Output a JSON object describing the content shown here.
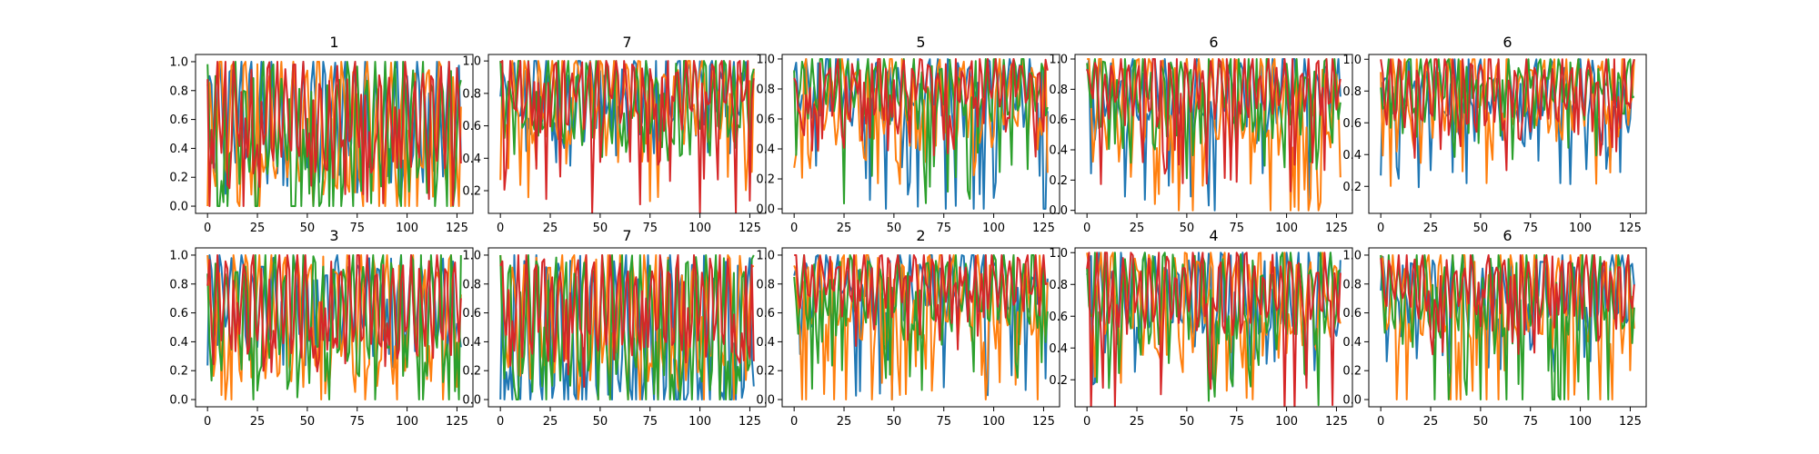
{
  "figure": {
    "background": "#ffffff",
    "series_colors": [
      "#1f77b4",
      "#ff7f0e",
      "#2ca02c",
      "#d62728"
    ]
  },
  "chart_data": [
    {
      "type": "line",
      "title": "1",
      "x_range": [
        0,
        127
      ],
      "xlim": [
        -6,
        133
      ],
      "ylim": [
        -0.05,
        1.05
      ],
      "xticks": [
        0,
        25,
        50,
        75,
        100,
        125
      ],
      "yticks": [
        0.0,
        0.2,
        0.4,
        0.6,
        0.8,
        1.0
      ],
      "series": [
        {
          "color": "#1f77b4",
          "center": 0.62,
          "amp": 0.38,
          "period": 5.2,
          "dip": 0.6,
          "phase": 0.3,
          "seed": 11
        },
        {
          "color": "#ff7f0e",
          "center": 0.58,
          "amp": 0.42,
          "period": 6.1,
          "dip": 0.9,
          "phase": 1.1,
          "seed": 12
        },
        {
          "color": "#2ca02c",
          "center": 0.6,
          "amp": 0.4,
          "period": 4.7,
          "dip": 1.0,
          "phase": 2.0,
          "seed": 13
        },
        {
          "color": "#d62728",
          "center": 0.65,
          "amp": 0.35,
          "period": 4.3,
          "dip": 0.7,
          "phase": 0.8,
          "seed": 14
        }
      ]
    },
    {
      "type": "line",
      "title": "7",
      "x_range": [
        0,
        127
      ],
      "xlim": [
        -6,
        133
      ],
      "ylim": [
        0.06,
        1.04
      ],
      "xticks": [
        0,
        25,
        50,
        75,
        100,
        125
      ],
      "yticks": [
        0.2,
        0.4,
        0.6,
        0.8,
        1.0
      ],
      "series": [
        {
          "color": "#1f77b4",
          "center": 0.8,
          "amp": 0.2,
          "period": 5.5,
          "dip": 0.5,
          "phase": 0.2,
          "seed": 21
        },
        {
          "color": "#ff7f0e",
          "center": 0.78,
          "amp": 0.22,
          "period": 6.3,
          "dip": 0.7,
          "phase": 1.4,
          "seed": 22
        },
        {
          "color": "#2ca02c",
          "center": 0.76,
          "amp": 0.24,
          "period": 4.9,
          "dip": 0.4,
          "phase": 2.2,
          "seed": 23
        },
        {
          "color": "#d62728",
          "center": 0.82,
          "amp": 0.18,
          "period": 4.4,
          "dip": 0.8,
          "phase": 0.6,
          "seed": 24
        }
      ]
    },
    {
      "type": "line",
      "title": "5",
      "x_range": [
        0,
        127
      ],
      "xlim": [
        -6,
        133
      ],
      "ylim": [
        -0.03,
        1.03
      ],
      "xticks": [
        0,
        25,
        50,
        75,
        100,
        125
      ],
      "yticks": [
        0.0,
        0.2,
        0.4,
        0.6,
        0.8,
        1.0
      ],
      "series": [
        {
          "color": "#1f77b4",
          "center": 0.8,
          "amp": 0.2,
          "period": 5.1,
          "dip": 1.0,
          "phase": 0.4,
          "seed": 31
        },
        {
          "color": "#ff7f0e",
          "center": 0.76,
          "amp": 0.24,
          "period": 6.0,
          "dip": 0.6,
          "phase": 1.3,
          "seed": 32
        },
        {
          "color": "#2ca02c",
          "center": 0.82,
          "amp": 0.18,
          "period": 4.6,
          "dip": 0.8,
          "phase": 2.1,
          "seed": 33
        },
        {
          "color": "#d62728",
          "center": 0.84,
          "amp": 0.16,
          "period": 4.2,
          "dip": 0.5,
          "phase": 0.9,
          "seed": 34
        }
      ]
    },
    {
      "type": "line",
      "title": "6",
      "x_range": [
        0,
        127
      ],
      "xlim": [
        -6,
        133
      ],
      "ylim": [
        -0.02,
        1.03
      ],
      "xticks": [
        0,
        25,
        50,
        75,
        100,
        125
      ],
      "yticks": [
        0.0,
        0.2,
        0.4,
        0.6,
        0.8,
        1.0
      ],
      "series": [
        {
          "color": "#1f77b4",
          "center": 0.78,
          "amp": 0.22,
          "period": 5.4,
          "dip": 0.9,
          "phase": 0.1,
          "seed": 41
        },
        {
          "color": "#ff7f0e",
          "center": 0.7,
          "amp": 0.3,
          "period": 6.2,
          "dip": 0.9,
          "phase": 1.2,
          "seed": 42
        },
        {
          "color": "#2ca02c",
          "center": 0.8,
          "amp": 0.2,
          "period": 4.8,
          "dip": 0.6,
          "phase": 2.4,
          "seed": 43
        },
        {
          "color": "#d62728",
          "center": 0.82,
          "amp": 0.18,
          "period": 4.1,
          "dip": 0.7,
          "phase": 0.7,
          "seed": 44
        }
      ]
    },
    {
      "type": "line",
      "title": "6",
      "x_range": [
        0,
        127
      ],
      "xlim": [
        -6,
        133
      ],
      "ylim": [
        0.03,
        1.03
      ],
      "xticks": [
        0,
        25,
        50,
        75,
        100,
        125
      ],
      "yticks": [
        0.2,
        0.4,
        0.6,
        0.8,
        1.0
      ],
      "series": [
        {
          "color": "#1f77b4",
          "center": 0.78,
          "amp": 0.18,
          "period": 7.0,
          "dip": 0.6,
          "phase": 0.5,
          "seed": 51
        },
        {
          "color": "#ff7f0e",
          "center": 0.8,
          "amp": 0.2,
          "period": 5.8,
          "dip": 0.6,
          "phase": 1.6,
          "seed": 52
        },
        {
          "color": "#2ca02c",
          "center": 0.86,
          "amp": 0.14,
          "period": 5.0,
          "dip": 0.5,
          "phase": 2.5,
          "seed": 53
        },
        {
          "color": "#d62728",
          "center": 0.8,
          "amp": 0.2,
          "period": 4.5,
          "dip": 0.5,
          "phase": 0.9,
          "seed": 54
        }
      ]
    },
    {
      "type": "line",
      "title": "3",
      "x_range": [
        0,
        127
      ],
      "xlim": [
        -6,
        133
      ],
      "ylim": [
        -0.05,
        1.05
      ],
      "xticks": [
        0,
        25,
        50,
        75,
        100,
        125
      ],
      "yticks": [
        0.0,
        0.2,
        0.4,
        0.6,
        0.8,
        1.0
      ],
      "series": [
        {
          "color": "#1f77b4",
          "center": 0.7,
          "amp": 0.3,
          "period": 5.3,
          "dip": 0.5,
          "phase": 0.2,
          "seed": 61
        },
        {
          "color": "#ff7f0e",
          "center": 0.6,
          "amp": 0.4,
          "period": 6.4,
          "dip": 0.9,
          "phase": 1.5,
          "seed": 62
        },
        {
          "color": "#2ca02c",
          "center": 0.62,
          "amp": 0.38,
          "period": 4.9,
          "dip": 0.9,
          "phase": 2.3,
          "seed": 63
        },
        {
          "color": "#d62728",
          "center": 0.68,
          "amp": 0.32,
          "period": 4.4,
          "dip": 0.5,
          "phase": 0.6,
          "seed": 64
        }
      ]
    },
    {
      "type": "line",
      "title": "7",
      "x_range": [
        0,
        127
      ],
      "xlim": [
        -6,
        133
      ],
      "ylim": [
        -0.05,
        1.05
      ],
      "xticks": [
        0,
        25,
        50,
        75,
        100,
        125
      ],
      "yticks": [
        0.0,
        0.2,
        0.4,
        0.6,
        0.8,
        1.0
      ],
      "series": [
        {
          "color": "#1f77b4",
          "center": 0.5,
          "amp": 0.5,
          "period": 5.6,
          "dip": 1.0,
          "phase": 0.3,
          "seed": 71
        },
        {
          "color": "#ff7f0e",
          "center": 0.6,
          "amp": 0.4,
          "period": 6.0,
          "dip": 0.8,
          "phase": 1.2,
          "seed": 72
        },
        {
          "color": "#2ca02c",
          "center": 0.55,
          "amp": 0.45,
          "period": 4.7,
          "dip": 1.0,
          "phase": 2.0,
          "seed": 73
        },
        {
          "color": "#d62728",
          "center": 0.68,
          "amp": 0.32,
          "period": 4.2,
          "dip": 0.6,
          "phase": 0.8,
          "seed": 74
        }
      ]
    },
    {
      "type": "line",
      "title": "2",
      "x_range": [
        0,
        127
      ],
      "xlim": [
        -6,
        133
      ],
      "ylim": [
        -0.05,
        1.05
      ],
      "xticks": [
        0,
        25,
        50,
        75,
        100,
        125
      ],
      "yticks": [
        0.0,
        0.2,
        0.4,
        0.6,
        0.8,
        1.0
      ],
      "series": [
        {
          "color": "#1f77b4",
          "center": 0.8,
          "amp": 0.2,
          "period": 5.2,
          "dip": 0.9,
          "phase": 0.4,
          "seed": 81
        },
        {
          "color": "#ff7f0e",
          "center": 0.72,
          "amp": 0.28,
          "period": 6.1,
          "dip": 0.8,
          "phase": 1.3,
          "seed": 82
        },
        {
          "color": "#2ca02c",
          "center": 0.75,
          "amp": 0.25,
          "period": 4.8,
          "dip": 0.7,
          "phase": 2.2,
          "seed": 83
        },
        {
          "color": "#d62728",
          "center": 0.84,
          "amp": 0.16,
          "period": 4.3,
          "dip": 0.5,
          "phase": 0.7,
          "seed": 84
        }
      ]
    },
    {
      "type": "line",
      "title": "4",
      "x_range": [
        0,
        127
      ],
      "xlim": [
        -6,
        133
      ],
      "ylim": [
        0.03,
        1.03
      ],
      "xticks": [
        0,
        25,
        50,
        75,
        100,
        125
      ],
      "yticks": [
        0.2,
        0.4,
        0.6,
        0.8,
        1.0
      ],
      "series": [
        {
          "color": "#1f77b4",
          "center": 0.74,
          "amp": 0.26,
          "period": 5.5,
          "dip": 0.6,
          "phase": 0.2,
          "seed": 91
        },
        {
          "color": "#ff7f0e",
          "center": 0.72,
          "amp": 0.28,
          "period": 6.2,
          "dip": 0.7,
          "phase": 1.4,
          "seed": 92
        },
        {
          "color": "#2ca02c",
          "center": 0.74,
          "amp": 0.26,
          "period": 4.9,
          "dip": 0.7,
          "phase": 2.4,
          "seed": 93
        },
        {
          "color": "#d62728",
          "center": 0.78,
          "amp": 0.22,
          "period": 4.4,
          "dip": 0.9,
          "phase": 0.9,
          "seed": 94
        }
      ]
    },
    {
      "type": "line",
      "title": "6",
      "x_range": [
        0,
        127
      ],
      "xlim": [
        -6,
        133
      ],
      "ylim": [
        -0.05,
        1.05
      ],
      "xticks": [
        0,
        25,
        50,
        75,
        100,
        125
      ],
      "yticks": [
        0.0,
        0.2,
        0.4,
        0.6,
        0.8,
        1.0
      ],
      "series": [
        {
          "color": "#1f77b4",
          "center": 0.78,
          "amp": 0.22,
          "period": 5.0,
          "dip": 0.6,
          "phase": 0.3,
          "seed": 101
        },
        {
          "color": "#ff7f0e",
          "center": 0.7,
          "amp": 0.3,
          "period": 5.9,
          "dip": 0.9,
          "phase": 1.2,
          "seed": 102
        },
        {
          "color": "#2ca02c",
          "center": 0.72,
          "amp": 0.28,
          "period": 4.6,
          "dip": 0.9,
          "phase": 2.1,
          "seed": 103
        },
        {
          "color": "#d62728",
          "center": 0.8,
          "amp": 0.2,
          "period": 4.1,
          "dip": 0.5,
          "phase": 0.8,
          "seed": 104
        }
      ]
    }
  ]
}
